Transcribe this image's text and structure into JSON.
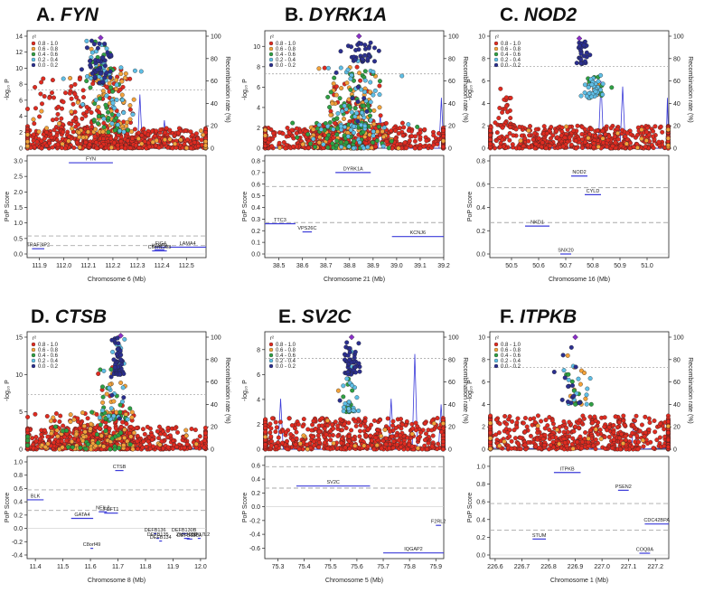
{
  "colors": {
    "r2_bins": [
      "#2b2f8f",
      "#5fbfe6",
      "#2ea043",
      "#f3a23b",
      "#e02b20"
    ],
    "lead": "#8b2fc9",
    "recomb": "#3b3bd9",
    "gene_line": "#3b3bd9",
    "axis": "#222222",
    "ref_line": "#aaaaaa",
    "point_edge": "#222222"
  },
  "legend": {
    "title": "r²",
    "items": [
      "0.8 - 1.0",
      "0.6 - 0.8",
      "0.4 - 0.6",
      "0.2 - 0.4",
      "0.0 - 0.2"
    ]
  },
  "chart_data": [
    {
      "panel": "A.",
      "gene": "FYN",
      "type": "scatter",
      "ylabel": "-log₁₀ P",
      "y2label": "Recombination rate (%)",
      "ylim": [
        0,
        14
      ],
      "yticks": [
        0,
        2,
        4,
        6,
        8,
        10,
        12,
        14
      ],
      "y2ticks": [
        0,
        20,
        40,
        60,
        80,
        100
      ],
      "sig_line": 7.3,
      "pop_ylabel": "PoP Score",
      "pop_ylim": [
        0,
        3
      ],
      "pop_yticks": [
        "0.0",
        "0.5",
        "1.0",
        "1.5",
        "2.0",
        "2.5",
        "3.0"
      ],
      "pop_yvals": [
        0,
        0.5,
        1,
        1.5,
        2,
        2.5,
        3
      ],
      "pop_ref_lines": [
        0.58,
        0.27
      ],
      "xlabel": "Chromosome 6 (Mb)",
      "xlim": [
        111.85,
        112.58
      ],
      "xticks": [
        "111.9",
        "112.0",
        "112.1",
        "112.2",
        "112.3",
        "112.4",
        "112.5"
      ],
      "xvals": [
        111.9,
        112.0,
        112.1,
        112.2,
        112.3,
        112.4,
        112.5
      ],
      "lead": {
        "x": 112.15,
        "y": 13.8
      },
      "clusters": [
        {
          "cx": 112.15,
          "sx": 0.03,
          "ylo": 8,
          "yhi": 13.5,
          "n": 90,
          "w": [
            0.5,
            0.25,
            0.15,
            0.1,
            0
          ]
        },
        {
          "cx": 112.2,
          "sx": 0.05,
          "ylo": 2,
          "yhi": 10,
          "n": 140,
          "w": [
            0,
            0.15,
            0.3,
            0.3,
            0.25
          ]
        },
        {
          "cx": 112.05,
          "sx": 0.08,
          "ylo": 2,
          "yhi": 9,
          "n": 120,
          "w": [
            0,
            0,
            0,
            0.15,
            0.85
          ]
        },
        {
          "cx": 112.22,
          "sx": 0.3,
          "ylo": 0,
          "yhi": 2.5,
          "n": 700,
          "w": [
            0,
            0,
            0,
            0.05,
            0.95
          ]
        }
      ],
      "recomb": [
        [
          112.3,
          0
        ],
        [
          112.31,
          48
        ],
        [
          112.32,
          0
        ],
        [
          112.4,
          0
        ],
        [
          112.41,
          25
        ],
        [
          112.42,
          0
        ]
      ],
      "genes": [
        {
          "label": "FYN",
          "start": 112.02,
          "end": 112.2,
          "score": 2.94
        },
        {
          "label": "TRAF3IP2",
          "start": 111.87,
          "end": 111.92,
          "score": 0.17
        },
        {
          "label": "FIG4",
          "start": 112.37,
          "end": 112.42,
          "score": 0.22
        },
        {
          "label": "WISP3",
          "start": 112.37,
          "end": 112.41,
          "score": 0.14
        },
        {
          "label": "LAMA4",
          "start": 112.43,
          "end": 112.58,
          "score": 0.22
        },
        {
          "label": "C6orf1298",
          "start": 112.36,
          "end": 112.42,
          "score": 0.1
        }
      ]
    },
    {
      "panel": "B.",
      "gene": "DYRK1A",
      "type": "scatter",
      "ylabel": "-log₁₀ P",
      "y2label": "Recombination rate (%)",
      "ylim": [
        0,
        11
      ],
      "yticks": [
        0,
        2,
        4,
        6,
        8,
        10
      ],
      "y2ticks": [
        0,
        20,
        40,
        60,
        80,
        100
      ],
      "sig_line": 7.3,
      "pop_ylabel": "PoP Score",
      "pop_ylim": [
        0,
        0.8
      ],
      "pop_yticks": [
        "0.0",
        "0.1",
        "0.2",
        "0.3",
        "0.4",
        "0.5",
        "0.6",
        "0.7",
        "0.8"
      ],
      "pop_yvals": [
        0,
        0.1,
        0.2,
        0.3,
        0.4,
        0.5,
        0.6,
        0.7,
        0.8
      ],
      "pop_ref_lines": [
        0.58,
        0.27
      ],
      "xlabel": "Chromosome 21 (Mb)",
      "xlim": [
        38.44,
        39.2
      ],
      "xticks": [
        "38.5",
        "38.6",
        "38.7",
        "38.8",
        "38.9",
        "39.0",
        "39.1",
        "39.2"
      ],
      "xvals": [
        38.5,
        38.6,
        38.7,
        38.8,
        38.9,
        39.0,
        39.1,
        39.2
      ],
      "lead": {
        "x": 38.84,
        "y": 11.0
      },
      "clusters": [
        {
          "cx": 38.86,
          "sx": 0.04,
          "ylo": 8.5,
          "yhi": 10.5,
          "n": 40,
          "w": [
            0.9,
            0.1,
            0,
            0,
            0
          ]
        },
        {
          "cx": 38.83,
          "sx": 0.06,
          "ylo": 2,
          "yhi": 8,
          "n": 200,
          "w": [
            0.05,
            0.2,
            0.3,
            0.2,
            0.25
          ]
        },
        {
          "cx": 38.8,
          "sx": 0.1,
          "ylo": 0,
          "yhi": 2.5,
          "n": 250,
          "w": [
            0,
            0.1,
            0.2,
            0.2,
            0.5
          ]
        },
        {
          "cx": 38.8,
          "sx": 0.35,
          "ylo": 0,
          "yhi": 2,
          "n": 500,
          "w": [
            0,
            0,
            0,
            0.03,
            0.97
          ]
        }
      ],
      "recomb": [
        [
          38.92,
          0
        ],
        [
          38.93,
          30
        ],
        [
          38.94,
          0
        ],
        [
          39.18,
          0
        ],
        [
          39.19,
          45
        ],
        [
          39.2,
          0
        ]
      ],
      "genes": [
        {
          "label": "DYRK1A",
          "start": 38.74,
          "end": 38.89,
          "score": 0.7
        },
        {
          "label": "TTC3",
          "start": 38.44,
          "end": 38.57,
          "score": 0.26
        },
        {
          "label": "VPS26C",
          "start": 38.6,
          "end": 38.64,
          "score": 0.19
        },
        {
          "label": "KCNJ6",
          "start": 38.98,
          "end": 39.2,
          "score": 0.15
        }
      ]
    },
    {
      "panel": "C.",
      "gene": "NOD2",
      "type": "scatter",
      "ylabel": "-log₁₀ P",
      "y2label": "Recombination rate (%)",
      "ylim": [
        0,
        10
      ],
      "yticks": [
        0,
        2,
        4,
        6,
        8,
        10
      ],
      "y2ticks": [
        0,
        20,
        40,
        60,
        80,
        100
      ],
      "sig_line": 7.3,
      "pop_ylabel": "PoP Score",
      "pop_ylim": [
        0,
        0.8
      ],
      "pop_yticks": [
        "0.0",
        "0.2",
        "0.4",
        "0.6",
        "0.8"
      ],
      "pop_yvals": [
        0,
        0.2,
        0.4,
        0.6,
        0.8
      ],
      "pop_ref_lines": [
        0.57,
        0.27
      ],
      "xlabel": "Chromosome 16 (Mb)",
      "xlim": [
        50.42,
        51.08
      ],
      "xticks": [
        "50.5",
        "50.6",
        "50.7",
        "50.8",
        "50.9",
        "51.0"
      ],
      "xvals": [
        50.5,
        50.6,
        50.7,
        50.8,
        50.9,
        51.0
      ],
      "lead": {
        "x": 50.75,
        "y": 9.8
      },
      "clusters": [
        {
          "cx": 50.76,
          "sx": 0.015,
          "ylo": 7.5,
          "yhi": 9.5,
          "n": 30,
          "w": [
            1,
            0,
            0,
            0,
            0
          ]
        },
        {
          "cx": 50.8,
          "sx": 0.025,
          "ylo": 4.5,
          "yhi": 6.5,
          "n": 60,
          "w": [
            0,
            0.6,
            0.3,
            0.1,
            0
          ]
        },
        {
          "cx": 50.48,
          "sx": 0.015,
          "ylo": 2,
          "yhi": 5.5,
          "n": 30,
          "w": [
            0,
            0,
            0,
            0,
            1
          ]
        },
        {
          "cx": 50.78,
          "sx": 0.3,
          "ylo": 0,
          "yhi": 2,
          "n": 600,
          "w": [
            0,
            0,
            0,
            0.03,
            0.97
          ]
        }
      ],
      "recomb": [
        [
          50.82,
          0
        ],
        [
          50.83,
          60
        ],
        [
          50.84,
          0
        ],
        [
          50.9,
          0
        ],
        [
          50.91,
          55
        ],
        [
          50.92,
          0
        ],
        [
          51.07,
          0
        ],
        [
          51.075,
          45
        ],
        [
          51.08,
          0
        ]
      ],
      "genes": [
        {
          "label": "NOD2",
          "start": 50.72,
          "end": 50.78,
          "score": 0.67
        },
        {
          "label": "CYLD",
          "start": 50.77,
          "end": 50.83,
          "score": 0.51
        },
        {
          "label": "NKD1",
          "start": 50.55,
          "end": 50.64,
          "score": 0.24
        },
        {
          "label": "SNX20",
          "start": 50.68,
          "end": 50.72,
          "score": 0.0
        }
      ]
    },
    {
      "panel": "D.",
      "gene": "CTSB",
      "type": "scatter",
      "ylabel": "-log₁₀ P",
      "y2label": "Recombination rate (%)",
      "ylim": [
        0,
        15
      ],
      "yticks": [
        0,
        5,
        10,
        15
      ],
      "y2ticks": [
        0,
        20,
        40,
        60,
        80,
        100
      ],
      "sig_line": 7.3,
      "pop_ylabel": "PoP Score",
      "pop_ylim": [
        -0.4,
        1.0
      ],
      "pop_yticks": [
        "-0.4",
        "-0.2",
        "0.0",
        "0.2",
        "0.4",
        "0.6",
        "0.8",
        "1.0"
      ],
      "pop_yvals": [
        -0.4,
        -0.2,
        0,
        0.2,
        0.4,
        0.6,
        0.8,
        1.0
      ],
      "pop_ref_lines": [
        0.58,
        0.27
      ],
      "xlabel": "Chromosome 8 (Mb)",
      "xlim": [
        11.37,
        12.02
      ],
      "xticks": [
        "11.4",
        "11.5",
        "11.6",
        "11.7",
        "11.8",
        "11.9",
        "12.0"
      ],
      "xvals": [
        11.4,
        11.5,
        11.6,
        11.7,
        11.8,
        11.9,
        12.0
      ],
      "lead": {
        "x": 11.71,
        "y": 15.2
      },
      "clusters": [
        {
          "cx": 11.7,
          "sx": 0.01,
          "ylo": 10,
          "yhi": 15,
          "n": 60,
          "w": [
            0.7,
            0.3,
            0,
            0,
            0
          ]
        },
        {
          "cx": 11.68,
          "sx": 0.03,
          "ylo": 4,
          "yhi": 11,
          "n": 80,
          "w": [
            0.05,
            0.15,
            0.35,
            0.3,
            0.15
          ]
        },
        {
          "cx": 11.6,
          "sx": 0.1,
          "ylo": 0,
          "yhi": 5,
          "n": 250,
          "w": [
            0,
            0,
            0.1,
            0.3,
            0.6
          ]
        },
        {
          "cx": 11.65,
          "sx": 0.2,
          "ylo": 0,
          "yhi": 3,
          "n": 550,
          "w": [
            0,
            0,
            0,
            0.03,
            0.97
          ]
        }
      ],
      "recomb": [
        [
          11.75,
          0
        ],
        [
          11.76,
          5
        ],
        [
          11.8,
          0
        ],
        [
          11.85,
          0
        ],
        [
          11.86,
          5
        ],
        [
          11.87,
          0
        ]
      ],
      "genes": [
        {
          "label": "CTSB",
          "start": 11.69,
          "end": 11.72,
          "score": 0.87
        },
        {
          "label": "BLK",
          "start": 11.37,
          "end": 11.43,
          "score": 0.43
        },
        {
          "label": "GATA4",
          "start": 11.53,
          "end": 11.61,
          "score": 0.15
        },
        {
          "label": "NEIL2",
          "start": 11.63,
          "end": 11.66,
          "score": 0.25
        },
        {
          "label": "FDFT1",
          "start": 11.65,
          "end": 11.7,
          "score": 0.23
        },
        {
          "label": "C8orf49",
          "start": 11.6,
          "end": 11.61,
          "score": -0.3
        },
        {
          "label": "DEFB136",
          "start": 11.83,
          "end": 11.84,
          "score": -0.08
        },
        {
          "label": "DEFB135",
          "start": 11.84,
          "end": 11.85,
          "score": -0.15
        },
        {
          "label": "DEFB134",
          "start": 11.85,
          "end": 11.86,
          "score": -0.19
        },
        {
          "label": "DEFB130B",
          "start": 11.93,
          "end": 11.95,
          "score": -0.08
        },
        {
          "label": "ZNF705D",
          "start": 11.94,
          "end": 11.96,
          "score": -0.15
        },
        {
          "label": "USP17L2",
          "start": 11.99,
          "end": 12.0,
          "score": -0.15
        },
        {
          "label": "DEFB130A",
          "start": 11.95,
          "end": 11.97,
          "score": -0.16
        }
      ]
    },
    {
      "panel": "E.",
      "gene": "SV2C",
      "type": "scatter",
      "ylabel": "-log₁₀ P",
      "y2label": "Recombination rate (%)",
      "ylim": [
        0,
        9
      ],
      "yticks": [
        0,
        2,
        4,
        6,
        8
      ],
      "y2ticks": [
        0,
        20,
        40,
        60,
        80,
        100
      ],
      "sig_line": 7.3,
      "pop_ylabel": "PoP Score",
      "pop_ylim": [
        -0.7,
        0.65
      ],
      "pop_yticks": [
        "-0.6",
        "-0.4",
        "-0.2",
        "0.0",
        "0.2",
        "0.4",
        "0.6"
      ],
      "pop_yvals": [
        -0.6,
        -0.4,
        -0.2,
        0,
        0.2,
        0.4,
        0.6
      ],
      "pop_ref_lines": [
        0.58,
        0.27
      ],
      "xlabel": "Chromosome 5 (Mb)",
      "xlim": [
        75.25,
        75.93
      ],
      "xticks": [
        "75.3",
        "75.4",
        "75.5",
        "75.6",
        "75.7",
        "75.8",
        "75.9"
      ],
      "xvals": [
        75.3,
        75.4,
        75.5,
        75.6,
        75.7,
        75.8,
        75.9
      ],
      "lead": {
        "x": 75.58,
        "y": 9.0
      },
      "clusters": [
        {
          "cx": 75.58,
          "sx": 0.015,
          "ylo": 6,
          "yhi": 8.7,
          "n": 50,
          "w": [
            0.95,
            0.05,
            0,
            0,
            0
          ]
        },
        {
          "cx": 75.57,
          "sx": 0.02,
          "ylo": 3,
          "yhi": 6,
          "n": 35,
          "w": [
            0.05,
            0.6,
            0.3,
            0.05,
            0
          ]
        },
        {
          "cx": 75.6,
          "sx": 0.3,
          "ylo": 0,
          "yhi": 2.5,
          "n": 650,
          "w": [
            0,
            0,
            0,
            0.02,
            0.98
          ]
        }
      ],
      "recomb": [
        [
          75.3,
          0
        ],
        [
          75.31,
          45
        ],
        [
          75.32,
          0
        ],
        [
          75.72,
          0
        ],
        [
          75.73,
          45
        ],
        [
          75.74,
          0
        ],
        [
          75.81,
          0
        ],
        [
          75.82,
          85
        ],
        [
          75.83,
          0
        ],
        [
          75.91,
          0
        ],
        [
          75.92,
          40
        ],
        [
          75.93,
          0
        ]
      ],
      "genes": [
        {
          "label": "SV2C",
          "start": 75.37,
          "end": 75.65,
          "score": 0.3
        },
        {
          "label": "F2RL2",
          "start": 75.9,
          "end": 75.92,
          "score": -0.27
        },
        {
          "label": "IQGAP2",
          "start": 75.7,
          "end": 75.93,
          "score": -0.67
        }
      ]
    },
    {
      "panel": "F.",
      "gene": "ITPKB",
      "type": "scatter",
      "ylabel": "-log₁₀ P",
      "y2label": "Recombination rate (%)",
      "ylim": [
        0,
        10
      ],
      "yticks": [
        0,
        2,
        4,
        6,
        8,
        10
      ],
      "y2ticks": [
        0,
        20,
        40,
        60,
        80,
        100
      ],
      "sig_line": 7.3,
      "pop_ylabel": "PoP Score",
      "pop_ylim": [
        0,
        1.05
      ],
      "pop_yticks": [
        "0.0",
        "0.2",
        "0.4",
        "0.6",
        "0.8",
        "1.0"
      ],
      "pop_yvals": [
        0,
        0.2,
        0.4,
        0.6,
        0.8,
        1.0
      ],
      "pop_ref_lines": [
        0.58,
        0.28
      ],
      "xlabel": "Chromosome 1 (Mb)",
      "xlim": [
        226.58,
        227.25
      ],
      "xticks": [
        "226.6",
        "226.7",
        "226.8",
        "226.9",
        "227.0",
        "227.1",
        "227.2"
      ],
      "xvals": [
        226.6,
        226.7,
        226.8,
        226.9,
        227.0,
        227.1,
        227.2
      ],
      "lead": {
        "x": 226.9,
        "y": 10.0
      },
      "clusters": [
        {
          "cx": 226.88,
          "sx": 0.02,
          "ylo": 4,
          "yhi": 9.5,
          "n": 25,
          "w": [
            0.5,
            0.3,
            0.1,
            0.1,
            0
          ]
        },
        {
          "cx": 226.92,
          "sx": 0.02,
          "ylo": 4,
          "yhi": 8,
          "n": 20,
          "w": [
            0,
            0.1,
            0.4,
            0.5,
            0
          ]
        },
        {
          "cx": 226.9,
          "sx": 0.3,
          "ylo": 0,
          "yhi": 3,
          "n": 650,
          "w": [
            0,
            0,
            0,
            0.03,
            0.97
          ]
        }
      ],
      "recomb": [
        [
          227.11,
          0
        ],
        [
          227.12,
          28
        ],
        [
          227.13,
          0
        ]
      ],
      "genes": [
        {
          "label": "ITPKB",
          "start": 226.82,
          "end": 226.92,
          "score": 0.93
        },
        {
          "label": "PSEN2",
          "start": 227.06,
          "end": 227.1,
          "score": 0.73
        },
        {
          "label": "CDC42BPA",
          "start": 227.16,
          "end": 227.25,
          "score": 0.35
        },
        {
          "label": "STUM",
          "start": 226.74,
          "end": 226.79,
          "score": 0.18
        },
        {
          "label": "COQ8A",
          "start": 227.14,
          "end": 227.18,
          "score": 0.02
        }
      ]
    }
  ]
}
